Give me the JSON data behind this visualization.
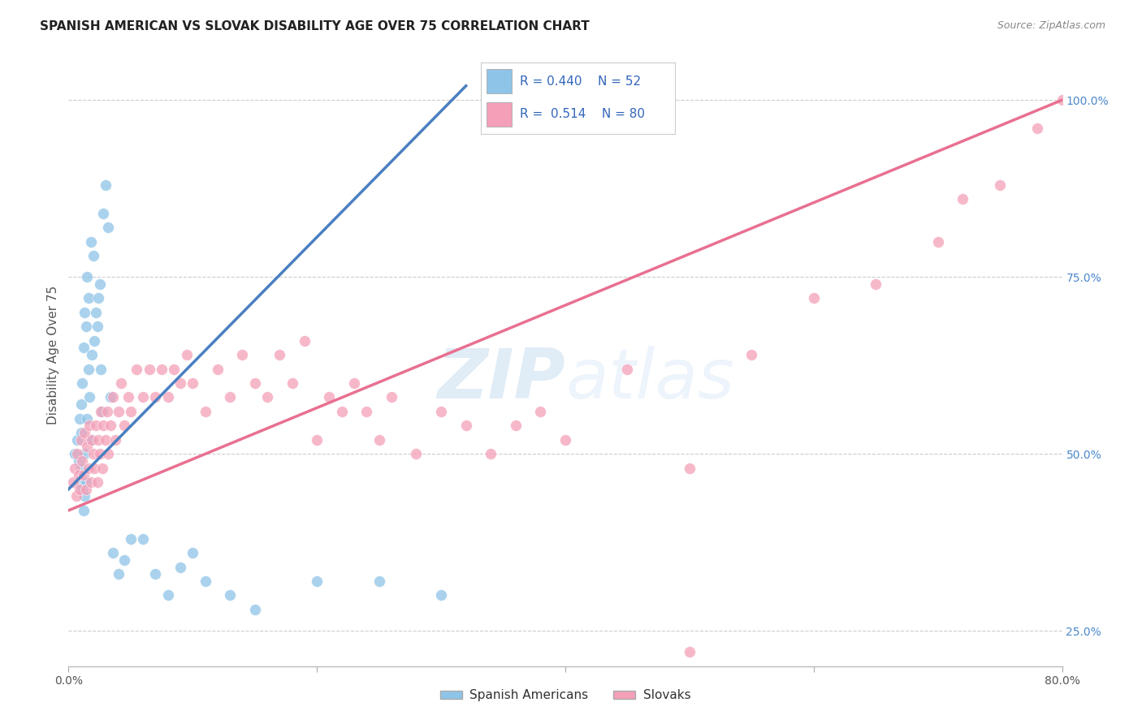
{
  "title": "SPANISH AMERICAN VS SLOVAK DISABILITY AGE OVER 75 CORRELATION CHART",
  "source": "Source: ZipAtlas.com",
  "ylabel": "Disability Age Over 75",
  "xlim": [
    0.0,
    0.8
  ],
  "ylim": [
    0.2,
    1.08
  ],
  "ytick_positions": [
    0.25,
    0.5,
    0.75,
    1.0
  ],
  "ytick_labels": [
    "25.0%",
    "50.0%",
    "75.0%",
    "100.0%"
  ],
  "legend_labels": [
    "Spanish Americans",
    "Slovaks"
  ],
  "legend_r": [
    0.44,
    0.514
  ],
  "legend_n": [
    52,
    80
  ],
  "blue_color": "#8ec4e8",
  "pink_color": "#f4a0b8",
  "blue_line_color": "#4a7fc1",
  "pink_line_color": "#e87090",
  "background_color": "#ffffff",
  "grid_color": "#cccccc",
  "sa_x": [
    0.005,
    0.007,
    0.008,
    0.008,
    0.009,
    0.01,
    0.01,
    0.01,
    0.011,
    0.011,
    0.012,
    0.012,
    0.013,
    0.013,
    0.013,
    0.014,
    0.014,
    0.015,
    0.015,
    0.016,
    0.016,
    0.017,
    0.018,
    0.018,
    0.019,
    0.02,
    0.021,
    0.022,
    0.023,
    0.024,
    0.025,
    0.026,
    0.027,
    0.028,
    0.03,
    0.032,
    0.034,
    0.036,
    0.04,
    0.045,
    0.05,
    0.06,
    0.07,
    0.08,
    0.09,
    0.1,
    0.11,
    0.13,
    0.15,
    0.2,
    0.25,
    0.3
  ],
  "sa_y": [
    0.5,
    0.52,
    0.46,
    0.49,
    0.55,
    0.53,
    0.48,
    0.57,
    0.45,
    0.6,
    0.42,
    0.65,
    0.7,
    0.44,
    0.5,
    0.68,
    0.46,
    0.75,
    0.55,
    0.72,
    0.62,
    0.58,
    0.8,
    0.52,
    0.64,
    0.78,
    0.66,
    0.7,
    0.68,
    0.72,
    0.74,
    0.62,
    0.56,
    0.84,
    0.88,
    0.82,
    0.58,
    0.36,
    0.33,
    0.35,
    0.38,
    0.38,
    0.33,
    0.3,
    0.34,
    0.36,
    0.32,
    0.3,
    0.28,
    0.32,
    0.32,
    0.3
  ],
  "sk_x": [
    0.004,
    0.005,
    0.006,
    0.007,
    0.008,
    0.009,
    0.01,
    0.011,
    0.012,
    0.013,
    0.014,
    0.015,
    0.016,
    0.017,
    0.018,
    0.019,
    0.02,
    0.021,
    0.022,
    0.023,
    0.024,
    0.025,
    0.026,
    0.027,
    0.028,
    0.03,
    0.031,
    0.032,
    0.034,
    0.036,
    0.038,
    0.04,
    0.042,
    0.045,
    0.048,
    0.05,
    0.055,
    0.06,
    0.065,
    0.07,
    0.075,
    0.08,
    0.085,
    0.09,
    0.095,
    0.1,
    0.11,
    0.12,
    0.13,
    0.14,
    0.15,
    0.16,
    0.17,
    0.18,
    0.19,
    0.2,
    0.21,
    0.22,
    0.23,
    0.24,
    0.25,
    0.26,
    0.28,
    0.3,
    0.32,
    0.34,
    0.36,
    0.38,
    0.4,
    0.45,
    0.5,
    0.55,
    0.6,
    0.65,
    0.7,
    0.72,
    0.75,
    0.78,
    0.8,
    0.5
  ],
  "sk_y": [
    0.46,
    0.48,
    0.44,
    0.5,
    0.47,
    0.45,
    0.52,
    0.49,
    0.47,
    0.53,
    0.45,
    0.51,
    0.48,
    0.54,
    0.46,
    0.52,
    0.5,
    0.48,
    0.54,
    0.46,
    0.52,
    0.5,
    0.56,
    0.48,
    0.54,
    0.52,
    0.56,
    0.5,
    0.54,
    0.58,
    0.52,
    0.56,
    0.6,
    0.54,
    0.58,
    0.56,
    0.62,
    0.58,
    0.62,
    0.58,
    0.62,
    0.58,
    0.62,
    0.6,
    0.64,
    0.6,
    0.56,
    0.62,
    0.58,
    0.64,
    0.6,
    0.58,
    0.64,
    0.6,
    0.66,
    0.52,
    0.58,
    0.56,
    0.6,
    0.56,
    0.52,
    0.58,
    0.5,
    0.56,
    0.54,
    0.5,
    0.54,
    0.56,
    0.52,
    0.62,
    0.48,
    0.64,
    0.72,
    0.74,
    0.8,
    0.86,
    0.88,
    0.96,
    1.0,
    0.22
  ]
}
